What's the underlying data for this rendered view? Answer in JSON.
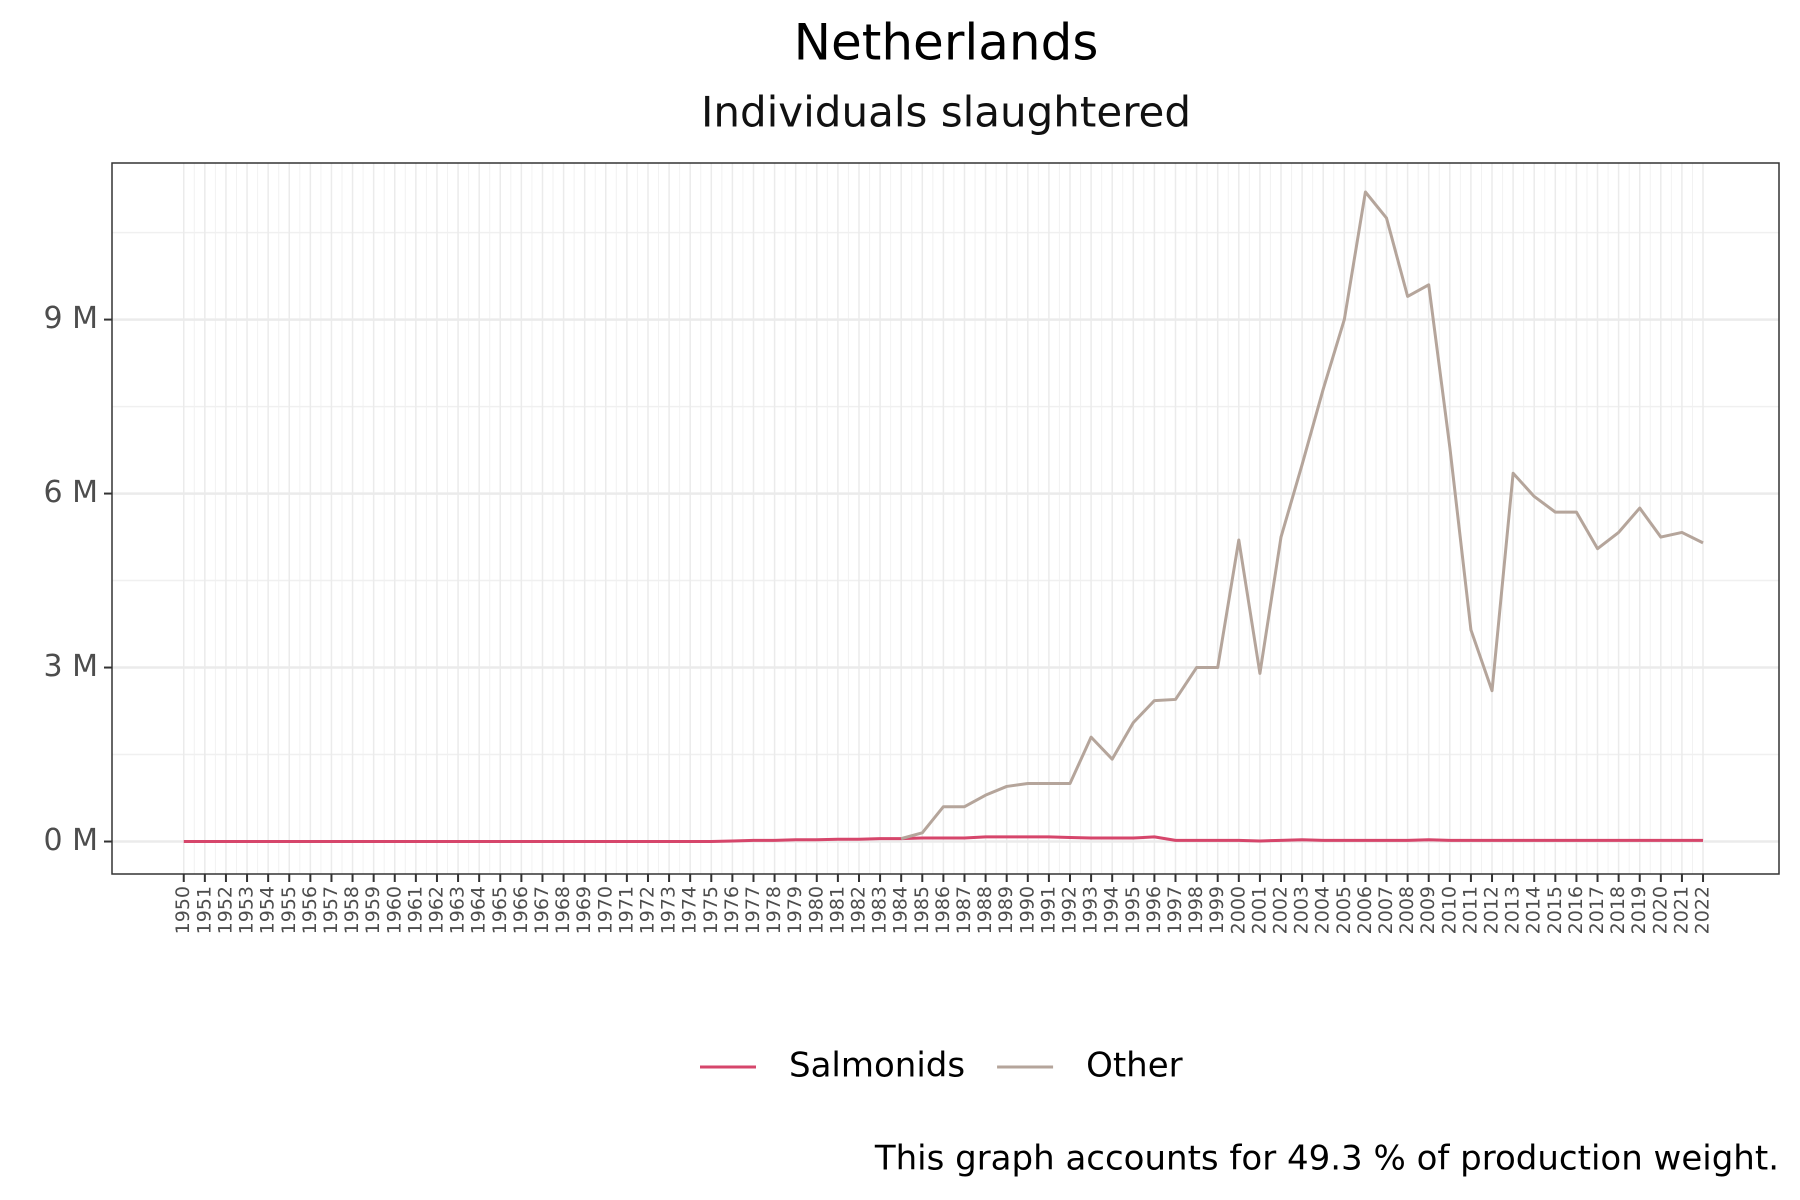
{
  "chart_data": {
    "type": "line",
    "title": "Netherlands",
    "subtitle": "Individuals slaughtered",
    "caption": "This graph accounts for 49.3 % of production weight.",
    "x": [
      1950,
      1951,
      1952,
      1953,
      1954,
      1955,
      1956,
      1957,
      1958,
      1959,
      1960,
      1961,
      1962,
      1963,
      1964,
      1965,
      1966,
      1967,
      1968,
      1969,
      1970,
      1971,
      1972,
      1973,
      1974,
      1975,
      1976,
      1977,
      1978,
      1979,
      1980,
      1981,
      1982,
      1983,
      1984,
      1985,
      1986,
      1987,
      1988,
      1989,
      1990,
      1991,
      1992,
      1993,
      1994,
      1995,
      1996,
      1997,
      1998,
      1999,
      2000,
      2001,
      2002,
      2003,
      2004,
      2005,
      2006,
      2007,
      2008,
      2009,
      2010,
      2011,
      2012,
      2013,
      2014,
      2015,
      2016,
      2017,
      2018,
      2019,
      2020,
      2021,
      2022
    ],
    "xticks": [
      1950,
      1951,
      1952,
      1953,
      1954,
      1955,
      1956,
      1957,
      1958,
      1959,
      1960,
      1961,
      1962,
      1963,
      1964,
      1965,
      1966,
      1967,
      1968,
      1969,
      1970,
      1971,
      1972,
      1973,
      1974,
      1975,
      1976,
      1977,
      1978,
      1979,
      1980,
      1981,
      1982,
      1983,
      1984,
      1985,
      1986,
      1987,
      1988,
      1989,
      1990,
      1991,
      1992,
      1993,
      1994,
      1995,
      1996,
      1997,
      1998,
      1999,
      2000,
      2001,
      2002,
      2003,
      2004,
      2005,
      2006,
      2007,
      2008,
      2009,
      2010,
      2011,
      2012,
      2013,
      2014,
      2015,
      2016,
      2017,
      2018,
      2019,
      2020,
      2021,
      2022
    ],
    "xlim": [
      1946.6,
      2025.6
    ],
    "ylim": [
      -0.56,
      11.7
    ],
    "yticks": [
      {
        "value": 0,
        "label": "0 M"
      },
      {
        "value": 3,
        "label": "3 M"
      },
      {
        "value": 6,
        "label": "6 M"
      },
      {
        "value": 9,
        "label": "9 M"
      }
    ],
    "grid": true,
    "legend": "bottom",
    "series": [
      {
        "name": "Salmonids",
        "color": "#d6466b",
        "values": [
          0,
          0,
          0,
          0,
          0,
          0,
          0,
          0,
          0,
          0,
          0,
          0,
          0,
          0,
          0,
          0,
          0,
          0,
          0,
          0,
          0,
          0,
          0,
          0,
          0,
          0,
          0.01,
          0.02,
          0.02,
          0.03,
          0.03,
          0.04,
          0.04,
          0.05,
          0.05,
          0.06,
          0.06,
          0.06,
          0.08,
          0.08,
          0.08,
          0.08,
          0.07,
          0.06,
          0.06,
          0.06,
          0.08,
          0.02,
          0.02,
          0.02,
          0.02,
          0.01,
          0.02,
          0.03,
          0.02,
          0.02,
          0.02,
          0.02,
          0.02,
          0.03,
          0.02,
          0.02,
          0.02,
          0.02,
          0.02,
          0.02,
          0.02,
          0.02,
          0.02,
          0.02,
          0.02,
          0.02,
          0.02
        ]
      },
      {
        "name": "Other",
        "color": "#b5a59b",
        "values": [
          null,
          null,
          null,
          null,
          null,
          null,
          null,
          null,
          null,
          null,
          null,
          null,
          null,
          null,
          null,
          null,
          null,
          null,
          null,
          null,
          null,
          null,
          null,
          null,
          null,
          null,
          null,
          null,
          null,
          null,
          null,
          null,
          null,
          null,
          0.05,
          0.15,
          0.6,
          0.6,
          0.8,
          0.95,
          1.0,
          1.0,
          1.0,
          1.8,
          1.42,
          2.05,
          2.43,
          2.45,
          3.0,
          3.0,
          5.2,
          2.9,
          5.25,
          6.5,
          7.8,
          9.0,
          11.2,
          10.75,
          9.4,
          9.6,
          6.8,
          3.65,
          2.6,
          6.35,
          5.95,
          5.68,
          5.68,
          5.05,
          5.33,
          5.75,
          5.25,
          5.33,
          5.15
        ]
      }
    ]
  }
}
